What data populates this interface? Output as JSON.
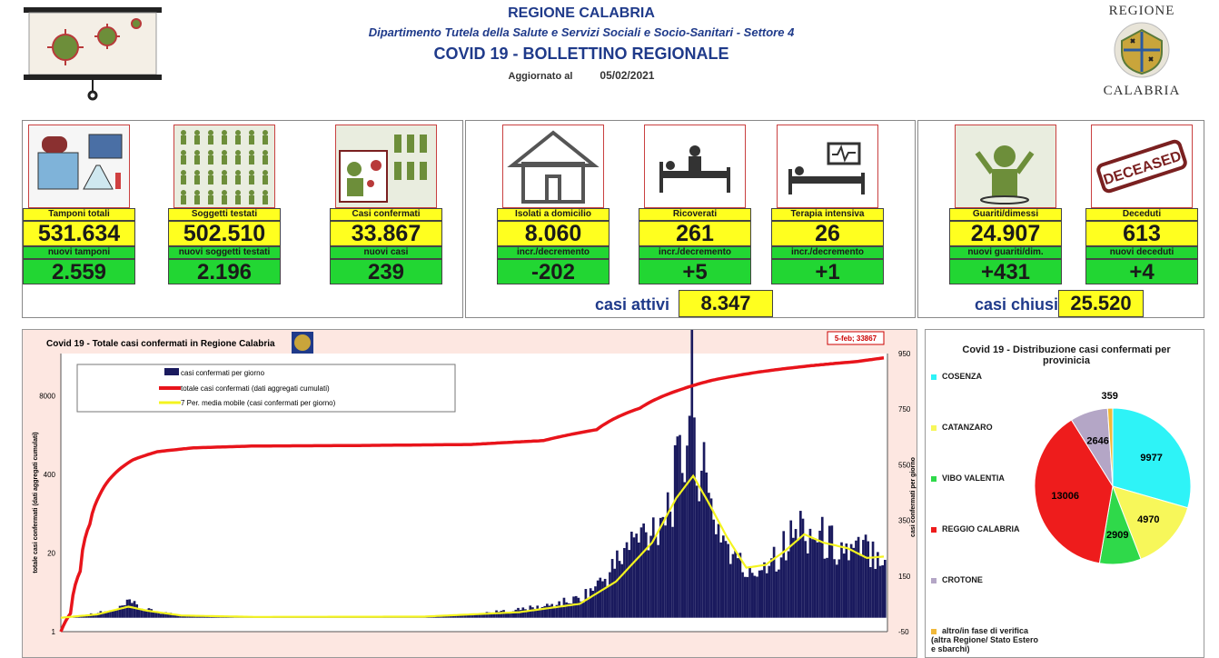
{
  "header": {
    "region": "REGIONE CALABRIA",
    "department": "Dipartimento Tutela della Salute e Servizi Sociali e Socio-Sanitari - Settore 4",
    "title": "COVID 19 - BOLLETTINO REGIONALE",
    "updated_label": "Aggiornato al",
    "updated_date": "05/02/2021",
    "emblem_top": "REGIONE",
    "emblem_bottom": "CALABRIA"
  },
  "cards": {
    "tamponi": {
      "label": "Tamponi totali",
      "value": "531.634",
      "sub_label": "nuovi tamponi",
      "sub_value": "2.559"
    },
    "soggetti": {
      "label": "Soggetti testati",
      "value": "502.510",
      "sub_label": "nuovi soggetti testati",
      "sub_value": "2.196"
    },
    "confermati": {
      "label": "Casi confermati",
      "value": "33.867",
      "sub_label": "nuovi casi",
      "sub_value": "239"
    },
    "isolati": {
      "label": "Isolati a domicilio",
      "value": "8.060",
      "sub_label": "incr./decremento",
      "sub_value": "-202"
    },
    "ricoverati": {
      "label": "Ricoverati",
      "value": "261",
      "sub_label": "incr./decremento",
      "sub_value": "+5"
    },
    "terapia": {
      "label": "Terapia intensiva",
      "value": "26",
      "sub_label": "incr./decremento",
      "sub_value": "+1"
    },
    "guariti": {
      "label": "Guariti/dimessi",
      "value": "24.907",
      "sub_label": "nuovi guariti/dim.",
      "sub_value": "+431"
    },
    "deceduti": {
      "label": "Deceduti",
      "value": "613",
      "sub_label": "nuovi deceduti",
      "sub_value": "+4"
    },
    "deceased_stamp": "DECEASED"
  },
  "totals": {
    "attivi_label": "casi attivi",
    "attivi_value": "8.347",
    "chiusi_label": "casi chiusi",
    "chiusi_value": "25.520"
  },
  "colors": {
    "yellow": "#ffff1f",
    "green": "#22d633",
    "navy": "#1f3a8a",
    "bar": "#1a1a5e",
    "cumulative": "#e8141b",
    "avg": "#f4f41f"
  },
  "chart_data": [
    {
      "type": "line",
      "title": "Covid 19 - Totale casi confermati in Regione Calabria",
      "ylabel": "totale casi confermati (dati aggregati cumulati)",
      "y2label": "casi confermati per giorno",
      "left_ticks": [
        "8000",
        "400",
        "20",
        "1"
      ],
      "right_ticks": [
        "950",
        "750",
        "550",
        "350",
        "150",
        "-50"
      ],
      "right_ylim": [
        -50,
        950
      ],
      "left_scale": "log",
      "annotation": "5-feb; 33867",
      "legend": [
        "casi confermati per giorno",
        "totale casi confermati (dati aggregati cumulati)",
        "7 Per. media mobile (casi confermati per giorno)"
      ],
      "legend_position": "top-left",
      "x_start": "2020-03-01",
      "x_end": "2021-02-05",
      "series": [
        {
          "name": "totale casi confermati (dati aggregati cumulati)",
          "points": [
            [
              0,
              1
            ],
            [
              4,
              2
            ],
            [
              8,
              10
            ],
            [
              12,
              60
            ],
            [
              16,
              180
            ],
            [
              22,
              400
            ],
            [
              30,
              700
            ],
            [
              40,
              950
            ],
            [
              55,
              1100
            ],
            [
              80,
              1180
            ],
            [
              120,
              1200
            ],
            [
              170,
              1250
            ],
            [
              200,
              1450
            ],
            [
              222,
              2200
            ],
            [
              240,
              5000
            ],
            [
              258,
              10500
            ],
            [
              270,
              14500
            ],
            [
              290,
              20000
            ],
            [
              310,
              25000
            ],
            [
              330,
              29500
            ],
            [
              341,
              33867
            ]
          ]
        },
        {
          "name": "casi confermati per giorno",
          "points": [
            [
              5,
              2
            ],
            [
              15,
              18
            ],
            [
              22,
              25
            ],
            [
              28,
              55
            ],
            [
              34,
              30
            ],
            [
              40,
              20
            ],
            [
              50,
              10
            ],
            [
              60,
              6
            ],
            [
              80,
              3
            ],
            [
              120,
              4
            ],
            [
              150,
              5
            ],
            [
              170,
              12
            ],
            [
              185,
              25
            ],
            [
              200,
              40
            ],
            [
              215,
              70
            ],
            [
              225,
              140
            ],
            [
              235,
              260
            ],
            [
              245,
              330
            ],
            [
              252,
              420
            ],
            [
              258,
              600
            ],
            [
              261,
              870
            ],
            [
              264,
              560
            ],
            [
              268,
              420
            ],
            [
              272,
              330
            ],
            [
              278,
              220
            ],
            [
              285,
              150
            ],
            [
              292,
              210
            ],
            [
              300,
              260
            ],
            [
              306,
              330
            ],
            [
              312,
              300
            ],
            [
              320,
              260
            ],
            [
              328,
              230
            ],
            [
              335,
              250
            ],
            [
              341,
              239
            ]
          ]
        },
        {
          "name": "7 Per. media mobile (casi confermati per giorno)",
          "points": [
            [
              0,
              0
            ],
            [
              15,
              12
            ],
            [
              28,
              40
            ],
            [
              36,
              25
            ],
            [
              50,
              8
            ],
            [
              80,
              3
            ],
            [
              150,
              4
            ],
            [
              190,
              20
            ],
            [
              215,
              50
            ],
            [
              230,
              130
            ],
            [
              245,
              270
            ],
            [
              255,
              430
            ],
            [
              262,
              510
            ],
            [
              268,
              420
            ],
            [
              276,
              290
            ],
            [
              284,
              180
            ],
            [
              292,
              190
            ],
            [
              300,
              240
            ],
            [
              308,
              300
            ],
            [
              316,
              270
            ],
            [
              326,
              250
            ],
            [
              334,
              215
            ],
            [
              341,
              220
            ]
          ]
        }
      ]
    },
    {
      "type": "pie",
      "title": "Covid 19 - Distribuzione casi confermati per provinicia",
      "categories": [
        "COSENZA",
        "CATANZARO",
        "VIBO VALENTIA",
        "REGGIO CALABRIA",
        "CROTONE",
        "altro/in fase di verifica (altra Regione/ Stato Estero e sbarchi)"
      ],
      "values": [
        9977,
        4970,
        2909,
        13006,
        2646,
        359
      ],
      "colors": [
        "#2ef3f7",
        "#f7f75a",
        "#2fd94a",
        "#ee1c1c",
        "#b4a6c6",
        "#f0b83a"
      ],
      "legend_position": "left"
    }
  ]
}
